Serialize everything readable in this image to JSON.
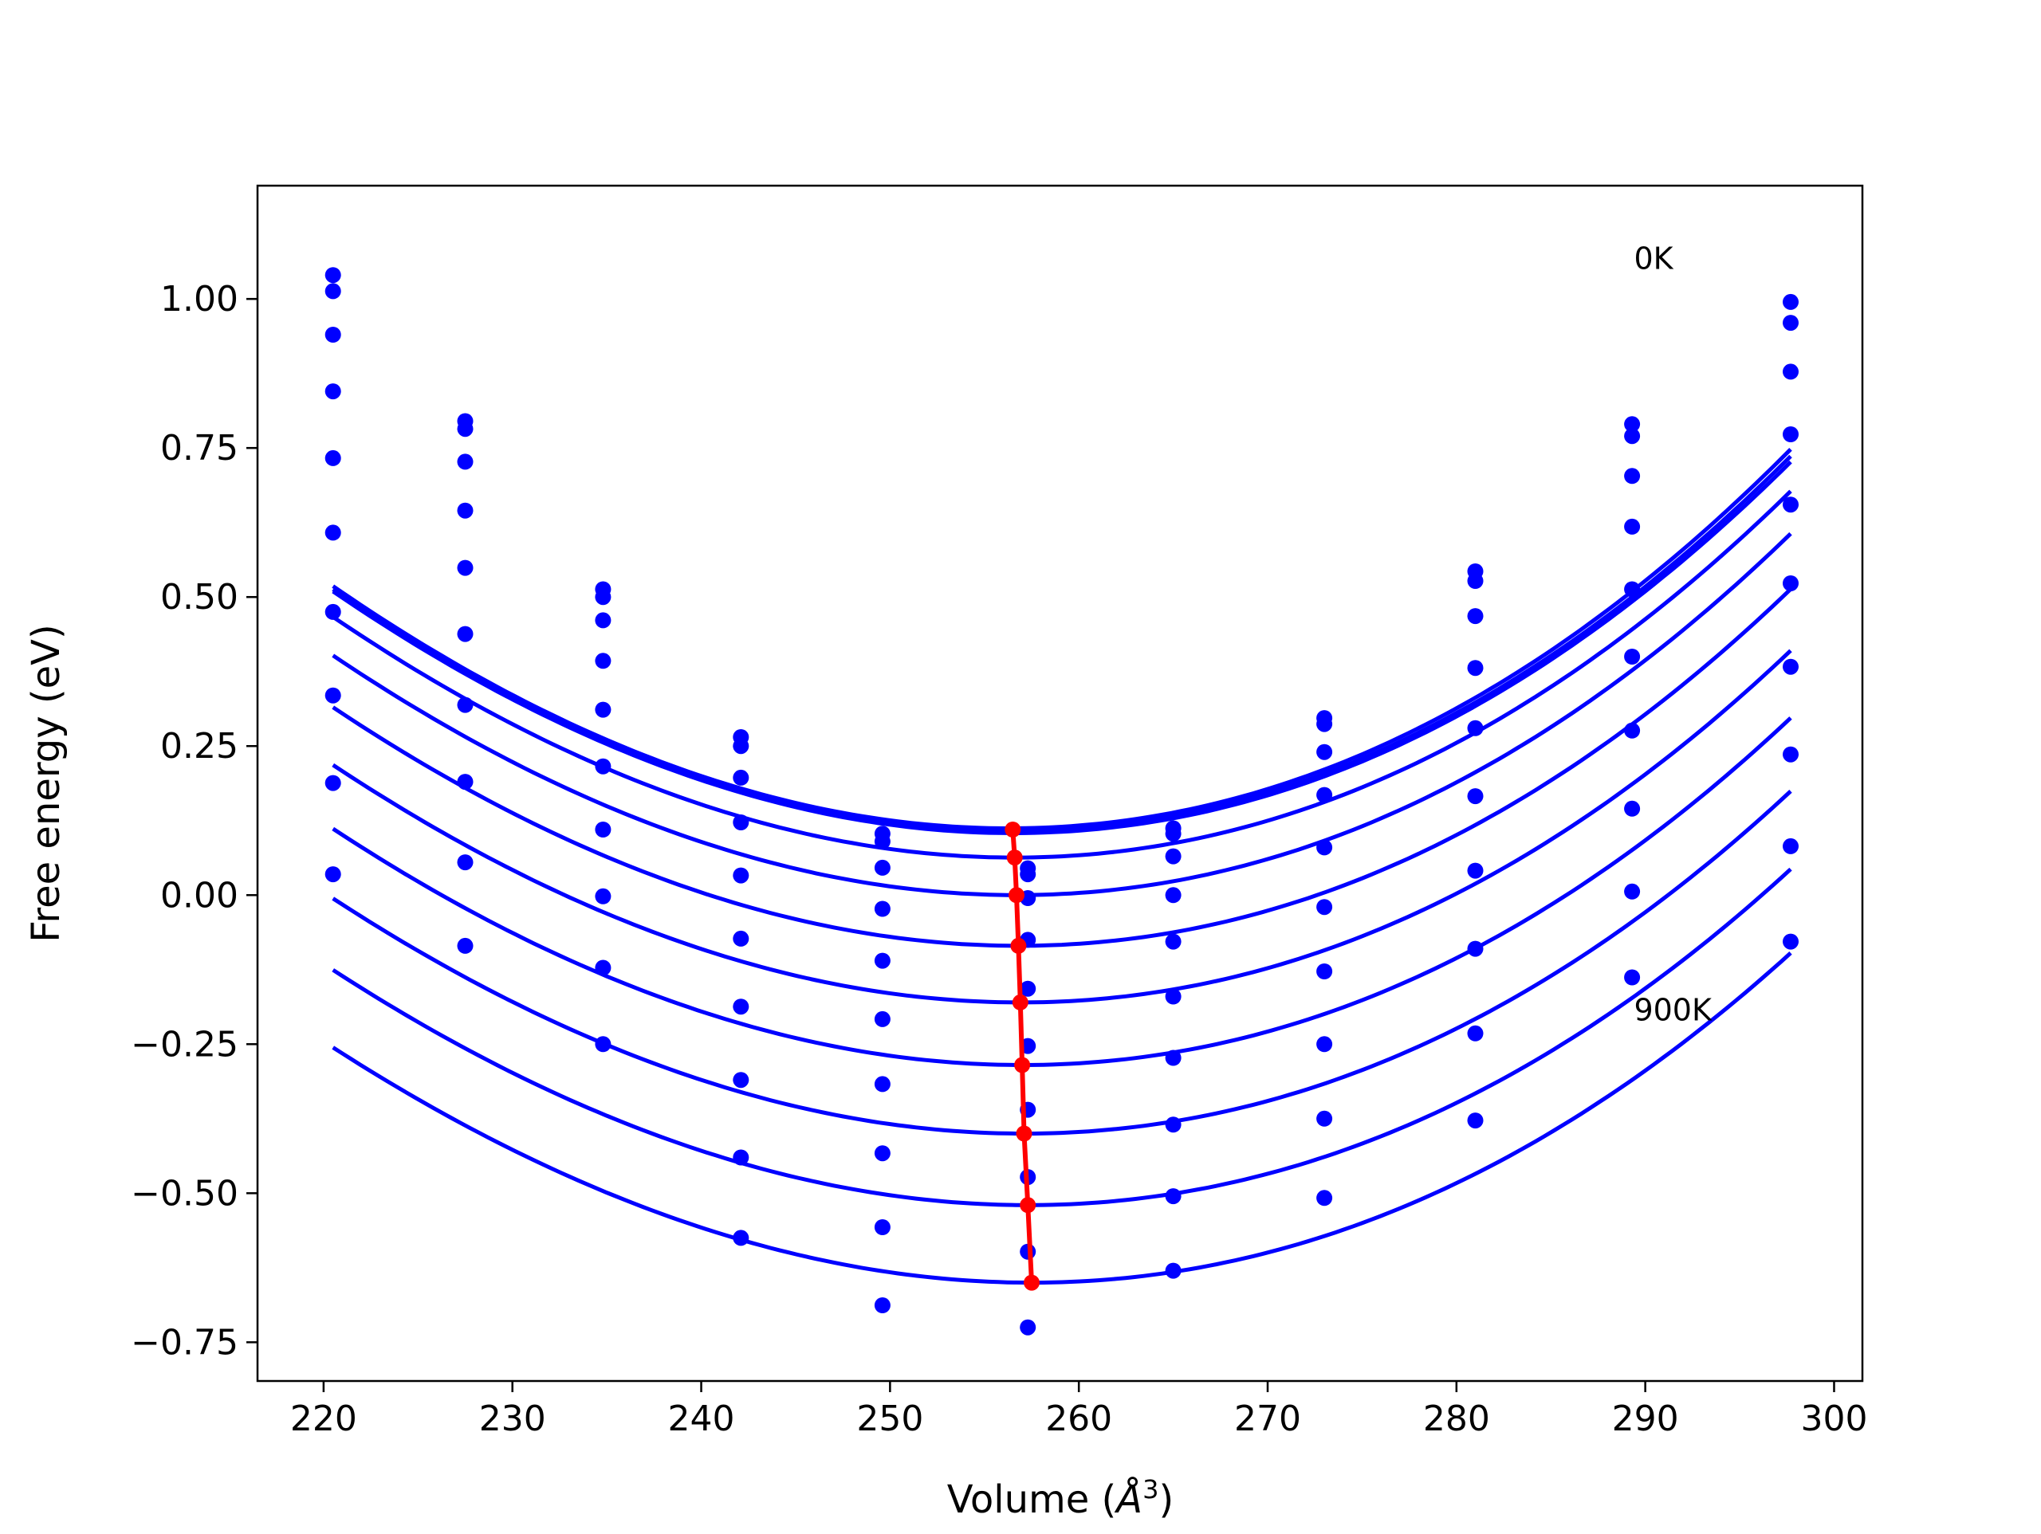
{
  "chart_data": {
    "type": "line",
    "title": "",
    "xlabel_text": "Volume (",
    "xlabel_unit": "Å",
    "xlabel_exp": "3",
    "xlabel_close": ")",
    "ylabel": "Free energy (eV)",
    "xlim": [
      216.5,
      301.5
    ],
    "ylim": [
      -0.815,
      1.19
    ],
    "grid": false,
    "xticks": [
      220,
      230,
      240,
      250,
      260,
      270,
      280,
      290,
      300
    ],
    "xtick_labels": [
      "220",
      "230",
      "240",
      "250",
      "260",
      "270",
      "280",
      "290",
      "300"
    ],
    "yticks": [
      1.0,
      0.75,
      0.5,
      0.25,
      0.0,
      -0.25,
      -0.5,
      -0.75
    ],
    "ytick_labels": [
      "1.00",
      "0.75",
      "0.50",
      "0.25",
      "0.00",
      "−0.25",
      "−0.50",
      "−0.75"
    ],
    "annotations": [
      {
        "text": "0K",
        "x": 289.4,
        "y": 1.05
      },
      {
        "text": "900K",
        "x": 289.4,
        "y": -0.21
      }
    ],
    "colors": {
      "curves": "#0000ff",
      "points": "#0000ff",
      "minima": "#ff0000",
      "axes": "#000000"
    },
    "fit_x_range": [
      220.5,
      297.7
    ],
    "series": [
      {
        "a": 0.000342,
        "v0": 256.3,
        "e0": 0.112
      },
      {
        "a": 0.00034,
        "v0": 256.4,
        "e0": 0.107
      },
      {
        "a": 0.000338,
        "v0": 256.5,
        "e0": 0.104
      },
      {
        "a": 0.000335,
        "v0": 256.6,
        "e0": 0.063
      },
      {
        "a": 0.000332,
        "v0": 256.7,
        "e0": 0.0
      },
      {
        "a": 0.000329,
        "v0": 256.8,
        "e0": -0.085
      },
      {
        "a": 0.000326,
        "v0": 256.9,
        "e0": -0.18
      },
      {
        "a": 0.000323,
        "v0": 257.0,
        "e0": -0.285
      },
      {
        "a": 0.00032,
        "v0": 257.1,
        "e0": -0.4
      },
      {
        "a": 0.000317,
        "v0": 257.3,
        "e0": -0.52
      },
      {
        "a": 0.000314,
        "v0": 257.5,
        "e0": -0.65
      }
    ],
    "scatter_columns": [
      {
        "x": 220.5,
        "y": [
          1.04,
          1.013,
          0.94,
          0.845,
          0.733,
          0.608,
          0.475,
          0.335,
          0.188,
          0.035
        ]
      },
      {
        "x": 227.5,
        "y": [
          0.795,
          0.782,
          0.727,
          0.645,
          0.549,
          0.438,
          0.319,
          0.19,
          0.055,
          -0.085
        ]
      },
      {
        "x": 234.8,
        "y": [
          0.513,
          0.5,
          0.461,
          0.393,
          0.311,
          0.216,
          0.11,
          -0.002,
          -0.122,
          -0.25
        ]
      },
      {
        "x": 242.1,
        "y": [
          0.265,
          0.25,
          0.197,
          0.122,
          0.033,
          -0.073,
          -0.187,
          -0.31,
          -0.44,
          -0.575
        ]
      },
      {
        "x": 249.6,
        "y": [
          0.103,
          0.09,
          0.046,
          -0.023,
          -0.11,
          -0.208,
          -0.317,
          -0.433,
          -0.557,
          -0.688
        ]
      },
      {
        "x": 257.3,
        "y": [
          0.045,
          0.035,
          -0.005,
          -0.075,
          -0.157,
          -0.253,
          -0.36,
          -0.473,
          -0.598,
          -0.725
        ]
      },
      {
        "x": 265.0,
        "y": [
          0.112,
          0.103,
          0.065,
          0.0,
          -0.078,
          -0.17,
          -0.273,
          -0.385,
          -0.505,
          -0.63
        ]
      },
      {
        "x": 273.0,
        "y": [
          0.297,
          0.287,
          0.24,
          0.168,
          0.08,
          -0.02,
          -0.128,
          -0.25,
          -0.375,
          -0.508
        ]
      },
      {
        "x": 281.0,
        "y": [
          0.543,
          0.527,
          0.468,
          0.381,
          0.28,
          0.166,
          0.041,
          -0.09,
          -0.232,
          -0.378
        ]
      },
      {
        "x": 289.3,
        "y": [
          0.79,
          0.77,
          0.703,
          0.618,
          0.513,
          0.4,
          0.276,
          0.145,
          0.006,
          -0.138
        ]
      },
      {
        "x": 297.7,
        "y": [
          0.995,
          0.96,
          0.878,
          0.773,
          0.655,
          0.523,
          0.383,
          0.236,
          0.082,
          -0.078
        ]
      }
    ],
    "minima_line": {
      "x": [
        256.5,
        256.6,
        256.7,
        256.8,
        256.9,
        257.0,
        257.1,
        257.3,
        257.5
      ],
      "y": [
        0.11,
        0.063,
        0.0,
        -0.085,
        -0.18,
        -0.285,
        -0.4,
        -0.52,
        -0.65
      ]
    }
  }
}
